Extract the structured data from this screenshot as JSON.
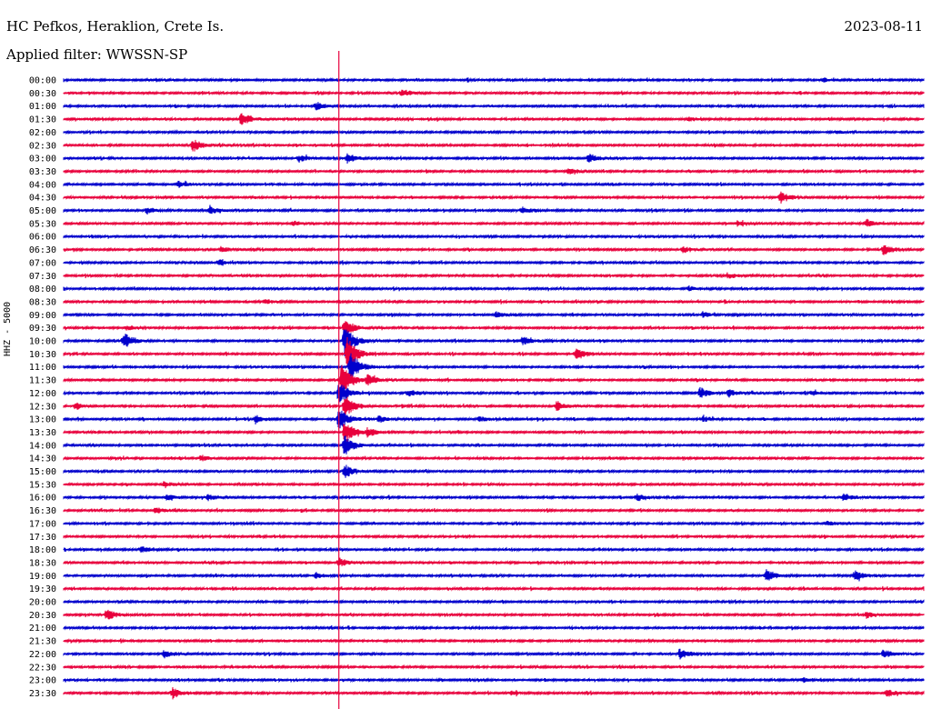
{
  "header": {
    "station": "HC Pefkos, Heraklion, Crete Is.",
    "date": "2023-08-11",
    "filter_label": "Applied filter: WWSSN-SP"
  },
  "axis": {
    "ylabel": "HHZ - 5000"
  },
  "colors": {
    "trace_even": "#0000cc",
    "trace_odd": "#e8003c",
    "marker": "#e8003c"
  },
  "chart_data": {
    "type": "line",
    "title": "HC Pefkos, Heraklion, Crete Is.",
    "xlabel": "",
    "ylabel": "HHZ - 5000",
    "grid": false,
    "legend": "none",
    "row_labels": [
      "00:00",
      "00:30",
      "01:00",
      "01:30",
      "02:00",
      "02:30",
      "03:00",
      "03:30",
      "04:00",
      "04:30",
      "05:00",
      "05:30",
      "06:00",
      "06:30",
      "07:00",
      "07:30",
      "08:00",
      "08:30",
      "09:00",
      "09:30",
      "10:00",
      "10:30",
      "11:00",
      "11:30",
      "12:00",
      "12:30",
      "13:00",
      "13:30",
      "14:00",
      "14:30",
      "15:00",
      "15:30",
      "16:00",
      "16:30",
      "17:00",
      "17:30",
      "18:00",
      "18:30",
      "19:00",
      "19:30",
      "20:00",
      "20:30",
      "21:00",
      "21:30",
      "22:00",
      "22:30",
      "23:00",
      "23:30"
    ],
    "row_minutes": 30,
    "marker_minute": 9.6,
    "events": [
      {
        "row": 0,
        "minute": 26.5,
        "amp": 0.3
      },
      {
        "row": 1,
        "minute": 11.8,
        "amp": 0.6
      },
      {
        "row": 2,
        "minute": 8.8,
        "amp": 0.7
      },
      {
        "row": 3,
        "minute": 6.2,
        "amp": 1.2
      },
      {
        "row": 3,
        "minute": 21.8,
        "amp": 0.3
      },
      {
        "row": 4,
        "minute": 27.0,
        "amp": 0.3
      },
      {
        "row": 5,
        "minute": 4.5,
        "amp": 1.2
      },
      {
        "row": 6,
        "minute": 8.2,
        "amp": 0.6
      },
      {
        "row": 6,
        "minute": 9.9,
        "amp": 0.8
      },
      {
        "row": 6,
        "minute": 18.3,
        "amp": 0.8
      },
      {
        "row": 7,
        "minute": 17.6,
        "amp": 0.5
      },
      {
        "row": 8,
        "minute": 4.0,
        "amp": 0.5
      },
      {
        "row": 9,
        "minute": 25.0,
        "amp": 1.0
      },
      {
        "row": 10,
        "minute": 2.9,
        "amp": 0.6
      },
      {
        "row": 10,
        "minute": 5.1,
        "amp": 0.6
      },
      {
        "row": 10,
        "minute": 16.0,
        "amp": 0.6
      },
      {
        "row": 11,
        "minute": 8.0,
        "amp": 0.4
      },
      {
        "row": 11,
        "minute": 23.5,
        "amp": 0.4
      },
      {
        "row": 11,
        "minute": 28.0,
        "amp": 0.7
      },
      {
        "row": 13,
        "minute": 5.5,
        "amp": 0.5
      },
      {
        "row": 13,
        "minute": 21.6,
        "amp": 0.5
      },
      {
        "row": 13,
        "minute": 28.6,
        "amp": 1.0
      },
      {
        "row": 14,
        "minute": 5.4,
        "amp": 0.5
      },
      {
        "row": 15,
        "minute": 23.2,
        "amp": 0.4
      },
      {
        "row": 16,
        "minute": 21.8,
        "amp": 0.4
      },
      {
        "row": 17,
        "minute": 7.0,
        "amp": 0.4
      },
      {
        "row": 18,
        "minute": 15.1,
        "amp": 0.5
      },
      {
        "row": 18,
        "minute": 22.3,
        "amp": 0.5
      },
      {
        "row": 19,
        "minute": 2.2,
        "amp": 0.4
      },
      {
        "row": 19,
        "minute": 9.8,
        "amp": 1.6
      },
      {
        "row": 20,
        "minute": 2.1,
        "amp": 1.4
      },
      {
        "row": 20,
        "minute": 9.8,
        "amp": 3.0
      },
      {
        "row": 20,
        "minute": 16.0,
        "amp": 0.7
      },
      {
        "row": 21,
        "minute": 9.9,
        "amp": 3.0
      },
      {
        "row": 21,
        "minute": 17.9,
        "amp": 1.0
      },
      {
        "row": 22,
        "minute": 10.0,
        "amp": 2.6
      },
      {
        "row": 23,
        "minute": 9.7,
        "amp": 3.0
      },
      {
        "row": 23,
        "minute": 10.6,
        "amp": 1.0
      },
      {
        "row": 24,
        "minute": 9.6,
        "amp": 2.2
      },
      {
        "row": 24,
        "minute": 12.0,
        "amp": 0.6
      },
      {
        "row": 24,
        "minute": 22.2,
        "amp": 0.9
      },
      {
        "row": 24,
        "minute": 23.2,
        "amp": 0.6
      },
      {
        "row": 24,
        "minute": 26.1,
        "amp": 0.4
      },
      {
        "row": 25,
        "minute": 0.4,
        "amp": 0.6
      },
      {
        "row": 25,
        "minute": 9.8,
        "amp": 2.0
      },
      {
        "row": 25,
        "minute": 17.2,
        "amp": 0.7
      },
      {
        "row": 26,
        "minute": 6.7,
        "amp": 0.6
      },
      {
        "row": 26,
        "minute": 9.6,
        "amp": 2.0
      },
      {
        "row": 26,
        "minute": 11.0,
        "amp": 0.6
      },
      {
        "row": 26,
        "minute": 14.5,
        "amp": 0.5
      },
      {
        "row": 26,
        "minute": 22.3,
        "amp": 0.4
      },
      {
        "row": 27,
        "minute": 9.8,
        "amp": 2.0
      },
      {
        "row": 27,
        "minute": 10.6,
        "amp": 0.6
      },
      {
        "row": 28,
        "minute": 9.8,
        "amp": 1.8
      },
      {
        "row": 29,
        "minute": 4.8,
        "amp": 0.5
      },
      {
        "row": 30,
        "minute": 9.8,
        "amp": 1.2
      },
      {
        "row": 31,
        "minute": 3.5,
        "amp": 0.4
      },
      {
        "row": 32,
        "minute": 3.6,
        "amp": 0.5
      },
      {
        "row": 32,
        "minute": 5.0,
        "amp": 0.5
      },
      {
        "row": 32,
        "minute": 20.0,
        "amp": 0.6
      },
      {
        "row": 32,
        "minute": 27.2,
        "amp": 0.7
      },
      {
        "row": 33,
        "minute": 3.2,
        "amp": 0.5
      },
      {
        "row": 34,
        "minute": 26.6,
        "amp": 0.4
      },
      {
        "row": 36,
        "minute": 2.7,
        "amp": 0.5
      },
      {
        "row": 37,
        "minute": 9.6,
        "amp": 0.8
      },
      {
        "row": 38,
        "minute": 8.8,
        "amp": 0.5
      },
      {
        "row": 38,
        "minute": 24.5,
        "amp": 1.0
      },
      {
        "row": 38,
        "minute": 27.6,
        "amp": 0.9
      },
      {
        "row": 41,
        "minute": 1.5,
        "amp": 0.9
      },
      {
        "row": 41,
        "minute": 28.0,
        "amp": 0.6
      },
      {
        "row": 44,
        "minute": 3.5,
        "amp": 0.7
      },
      {
        "row": 44,
        "minute": 21.5,
        "amp": 0.8
      },
      {
        "row": 44,
        "minute": 28.6,
        "amp": 0.7
      },
      {
        "row": 46,
        "minute": 25.8,
        "amp": 0.4
      },
      {
        "row": 47,
        "minute": 3.8,
        "amp": 0.9
      },
      {
        "row": 47,
        "minute": 15.6,
        "amp": 0.4
      },
      {
        "row": 47,
        "minute": 28.7,
        "amp": 0.7
      }
    ]
  }
}
